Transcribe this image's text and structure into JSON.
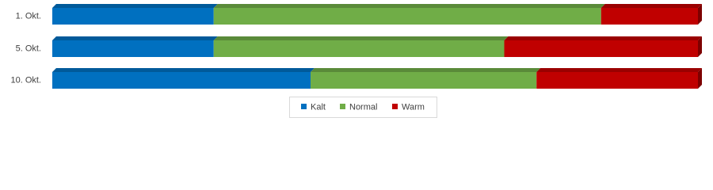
{
  "chart_data": {
    "type": "stacked-bar-100",
    "categories": [
      "1. Okt.",
      "5. Okt.",
      "10. Okt."
    ],
    "series": [
      {
        "name": "Kalt",
        "color": "#0070c0",
        "values": [
          25,
          25,
          40
        ]
      },
      {
        "name": "Normal",
        "color": "#70ad47",
        "values": [
          60,
          45,
          35
        ]
      },
      {
        "name": "Warm",
        "color": "#c00000",
        "values": [
          15,
          30,
          25
        ]
      }
    ],
    "xlim": [
      0,
      100
    ],
    "legend": "bottom"
  }
}
